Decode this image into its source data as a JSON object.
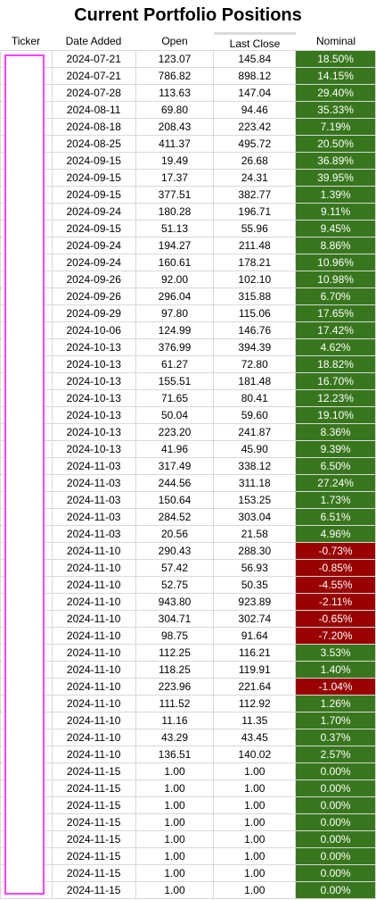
{
  "title": "Current Portfolio Positions",
  "columns": {
    "ticker": "Ticker",
    "date_added": "Date Added",
    "open": "Open",
    "last_close": "Last Close",
    "nominal": "Nominal"
  },
  "colors": {
    "positive": "#38761d",
    "negative": "#990000",
    "highlight_border": "#ff40ff"
  },
  "rows": [
    [
      "2024-07-21",
      "123.07",
      "145.84",
      "18.50%"
    ],
    [
      "2024-07-21",
      "786.82",
      "898.12",
      "14.15%"
    ],
    [
      "2024-07-28",
      "113.63",
      "147.04",
      "29.40%"
    ],
    [
      "2024-08-11",
      "69.80",
      "94.46",
      "35.33%"
    ],
    [
      "2024-08-18",
      "208.43",
      "223.42",
      "7.19%"
    ],
    [
      "2024-08-25",
      "411.37",
      "495.72",
      "20.50%"
    ],
    [
      "2024-09-15",
      "19.49",
      "26.68",
      "36.89%"
    ],
    [
      "2024-09-15",
      "17.37",
      "24.31",
      "39.95%"
    ],
    [
      "2024-09-15",
      "377.51",
      "382.77",
      "1.39%"
    ],
    [
      "2024-09-24",
      "180.28",
      "196.71",
      "9.11%"
    ],
    [
      "2024-09-15",
      "51.13",
      "55.96",
      "9.45%"
    ],
    [
      "2024-09-24",
      "194.27",
      "211.48",
      "8.86%"
    ],
    [
      "2024-09-24",
      "160.61",
      "178.21",
      "10.96%"
    ],
    [
      "2024-09-26",
      "92.00",
      "102.10",
      "10.98%"
    ],
    [
      "2024-09-26",
      "296.04",
      "315.88",
      "6.70%"
    ],
    [
      "2024-09-29",
      "97.80",
      "115.06",
      "17.65%"
    ],
    [
      "2024-10-06",
      "124.99",
      "146.76",
      "17.42%"
    ],
    [
      "2024-10-13",
      "376.99",
      "394.39",
      "4.62%"
    ],
    [
      "2024-10-13",
      "61.27",
      "72.80",
      "18.82%"
    ],
    [
      "2024-10-13",
      "155.51",
      "181.48",
      "16.70%"
    ],
    [
      "2024-10-13",
      "71.65",
      "80.41",
      "12.23%"
    ],
    [
      "2024-10-13",
      "50.04",
      "59.60",
      "19.10%"
    ],
    [
      "2024-10-13",
      "223.20",
      "241.87",
      "8.36%"
    ],
    [
      "2024-10-13",
      "41.96",
      "45.90",
      "9.39%"
    ],
    [
      "2024-11-03",
      "317.49",
      "338.12",
      "6.50%"
    ],
    [
      "2024-11-03",
      "244.56",
      "311.18",
      "27.24%"
    ],
    [
      "2024-11-03",
      "150.64",
      "153.25",
      "1.73%"
    ],
    [
      "2024-11-03",
      "284.52",
      "303.04",
      "6.51%"
    ],
    [
      "2024-11-03",
      "20.56",
      "21.58",
      "4.96%"
    ],
    [
      "2024-11-10",
      "290.43",
      "288.30",
      "-0.73%"
    ],
    [
      "2024-11-10",
      "57.42",
      "56.93",
      "-0.85%"
    ],
    [
      "2024-11-10",
      "52.75",
      "50.35",
      "-4.55%"
    ],
    [
      "2024-11-10",
      "943.80",
      "923.89",
      "-2.11%"
    ],
    [
      "2024-11-10",
      "304.71",
      "302.74",
      "-0.65%"
    ],
    [
      "2024-11-10",
      "98.75",
      "91.64",
      "-7.20%"
    ],
    [
      "2024-11-10",
      "112.25",
      "116.21",
      "3.53%"
    ],
    [
      "2024-11-10",
      "118.25",
      "119.91",
      "1.40%"
    ],
    [
      "2024-11-10",
      "223.96",
      "221.64",
      "-1.04%"
    ],
    [
      "2024-11-10",
      "111.52",
      "112.92",
      "1.26%"
    ],
    [
      "2024-11-10",
      "11.16",
      "11.35",
      "1.70%"
    ],
    [
      "2024-11-10",
      "43.29",
      "43.45",
      "0.37%"
    ],
    [
      "2024-11-10",
      "136.51",
      "140.02",
      "2.57%"
    ],
    [
      "2024-11-15",
      "1.00",
      "1.00",
      "0.00%"
    ],
    [
      "2024-11-15",
      "1.00",
      "1.00",
      "0.00%"
    ],
    [
      "2024-11-15",
      "1.00",
      "1.00",
      "0.00%"
    ],
    [
      "2024-11-15",
      "1.00",
      "1.00",
      "0.00%"
    ],
    [
      "2024-11-15",
      "1.00",
      "1.00",
      "0.00%"
    ],
    [
      "2024-11-15",
      "1.00",
      "1.00",
      "0.00%"
    ],
    [
      "2024-11-15",
      "1.00",
      "1.00",
      "0.00%"
    ],
    [
      "2024-11-15",
      "1.00",
      "1.00",
      "0.00%"
    ]
  ]
}
